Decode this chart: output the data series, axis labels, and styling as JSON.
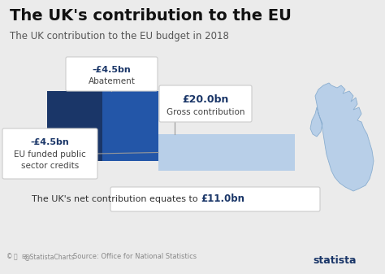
{
  "title": "The UK's contribution to the EU",
  "subtitle": "The UK contribution to the EU budget in 2018",
  "background_color": "#ebebeb",
  "dark_blue_left": "#1a3668",
  "dark_blue_right": "#2356a8",
  "light_blue": "#b8cfe8",
  "abatement_value": "-£4.5bn",
  "abatement_label": "Abatement",
  "gross_value": "£20.0bn",
  "gross_label": "Gross contribution",
  "eu_funded_value": "-£4.5bn",
  "eu_funded_label": "EU funded public\nsector credits",
  "net_text_plain": "The UK's net contribution equates to ",
  "net_value": "£11.0bn",
  "source": "Source: Office for National Statistics",
  "statista_color": "#1a3668",
  "box_facecolor": "#ffffff",
  "box_edgecolor": "#cccccc",
  "value_color": "#1a3668",
  "connector_color": "#999999",
  "title_fontsize": 14,
  "subtitle_fontsize": 8.5,
  "annotation_fontsize": 8,
  "net_fontsize": 8
}
